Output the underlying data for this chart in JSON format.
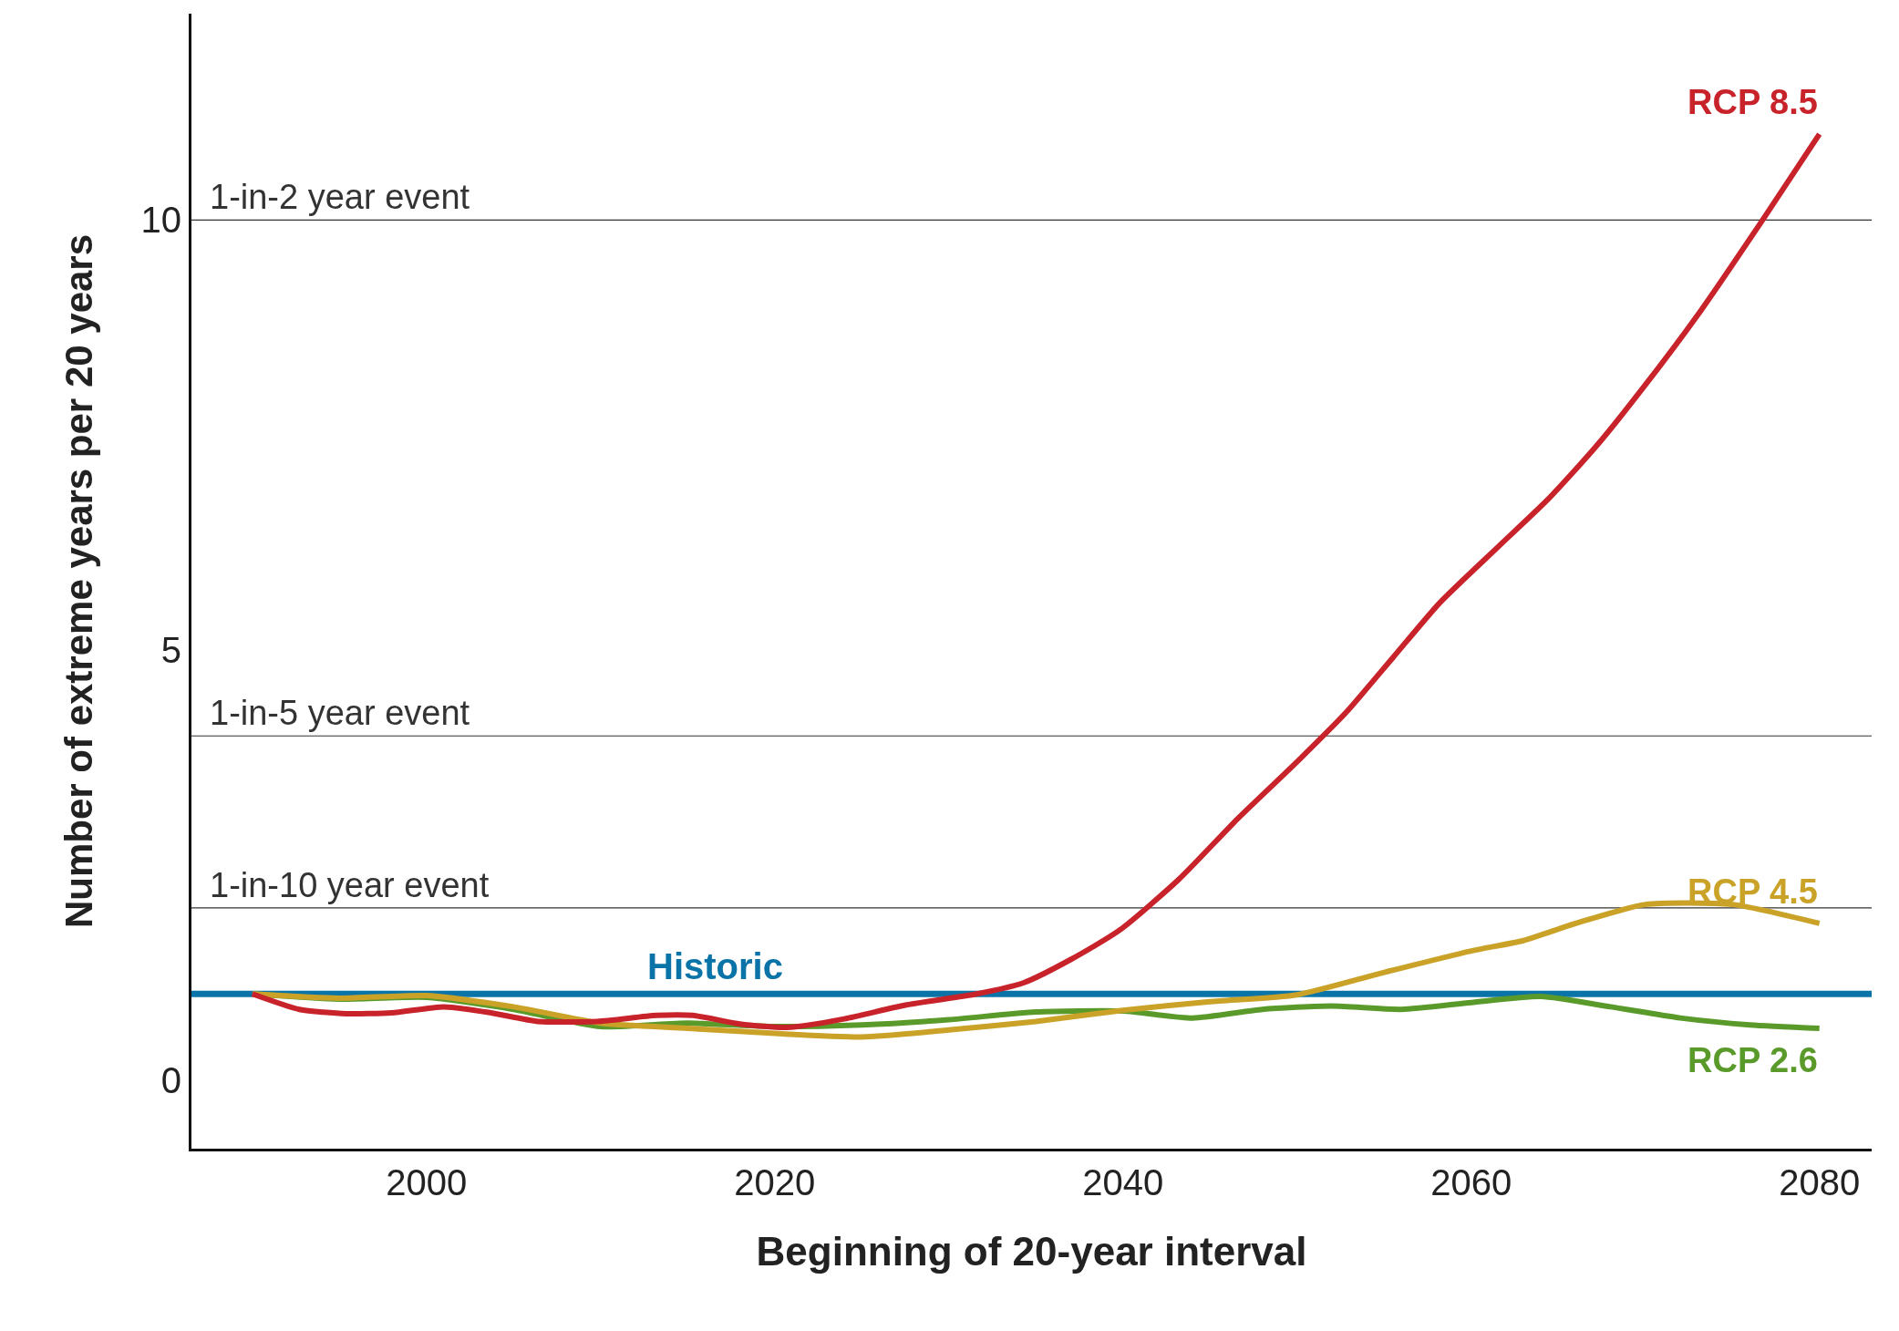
{
  "chart_data": {
    "type": "line",
    "xlabel": "Beginning of 20-year interval",
    "ylabel": "Number of extreme years per 20 years",
    "xlim": [
      1986.5,
      2083
    ],
    "xticks": [
      2000,
      2020,
      2040,
      2060,
      2080
    ],
    "ylim": [
      -0.8,
      12.4
    ],
    "yticks": [
      0,
      5,
      10
    ],
    "grid": false,
    "legend": false,
    "marker": "none",
    "line_style": "solid",
    "ref_lines": [
      {
        "axis": "y",
        "value": 10,
        "label": "1-in-2 year event",
        "color": "#333333"
      },
      {
        "axis": "y",
        "value": 4,
        "label": "1-in-5 year event",
        "color": "#333333"
      },
      {
        "axis": "y",
        "value": 2,
        "label": "1-in-10 year event",
        "color": "#333333"
      },
      {
        "axis": "y",
        "value": 1,
        "label": "Historic",
        "color": "#0a73a8"
      }
    ],
    "series": [
      {
        "name": "RCP 2.6",
        "color": "#5a9a2a",
        "x": [
          1990,
          1995,
          2000,
          2005,
          2010,
          2015,
          2020,
          2025,
          2030,
          2035,
          2040,
          2044,
          2048,
          2052,
          2056,
          2060,
          2064,
          2068,
          2072,
          2076,
          2080
        ],
        "values": [
          1.0,
          0.94,
          0.96,
          0.82,
          0.62,
          0.66,
          0.62,
          0.64,
          0.7,
          0.79,
          0.8,
          0.72,
          0.82,
          0.86,
          0.82,
          0.9,
          0.97,
          0.85,
          0.72,
          0.64,
          0.6
        ]
      },
      {
        "name": "RCP 4.5",
        "color": "#c9a227",
        "x": [
          1990,
          1995,
          2000,
          2005,
          2010,
          2015,
          2020,
          2025,
          2030,
          2035,
          2040,
          2045,
          2050,
          2055,
          2060,
          2063,
          2066,
          2070,
          2075,
          2080
        ],
        "values": [
          1.0,
          0.95,
          0.98,
          0.85,
          0.66,
          0.6,
          0.54,
          0.5,
          0.58,
          0.68,
          0.81,
          0.91,
          0.99,
          1.25,
          1.5,
          1.62,
          1.82,
          2.04,
          2.04,
          1.82
        ]
      },
      {
        "name": "RCP 8.5",
        "color": "#c8232a",
        "x": [
          1990,
          1992.7,
          1995.4,
          1998,
          2001,
          2003.7,
          2006.4,
          2009.8,
          2013.2,
          2015.3,
          2018,
          2020.7,
          2024,
          2027.5,
          2031.6,
          2034.3,
          2037,
          2039.8,
          2043.2,
          2046.6,
          2050,
          2052.8,
          2055.5,
          2058.2,
          2061.6,
          2064.4,
          2067.1,
          2069.8,
          2073.2,
          2076.7,
          2080
        ],
        "values": [
          1.0,
          0.82,
          0.77,
          0.78,
          0.85,
          0.78,
          0.68,
          0.68,
          0.75,
          0.75,
          0.65,
          0.61,
          0.71,
          0.87,
          1.0,
          1.13,
          1.4,
          1.74,
          2.33,
          3.04,
          3.7,
          4.27,
          4.91,
          5.55,
          6.21,
          6.75,
          7.35,
          8.03,
          8.95,
          9.99,
          11.0
        ]
      }
    ]
  }
}
